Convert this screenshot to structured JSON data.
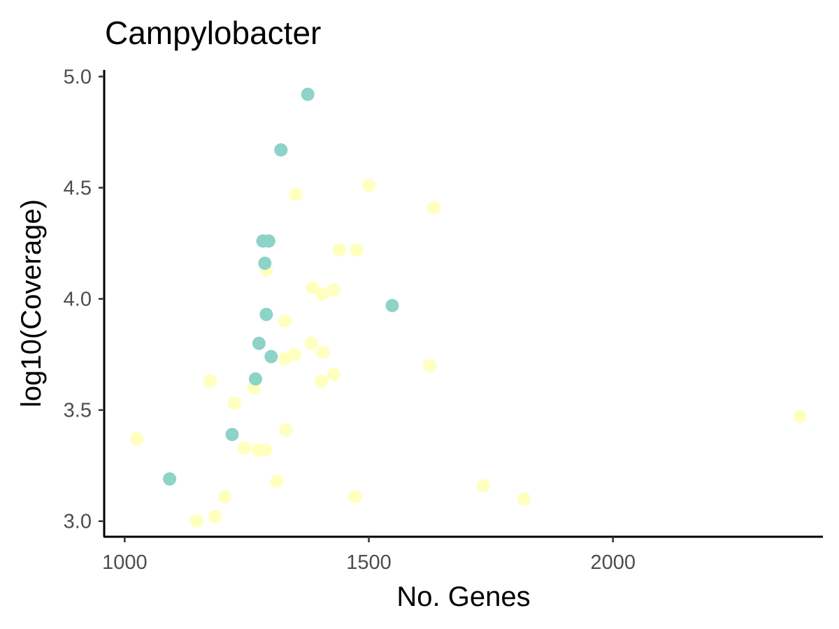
{
  "chart_data": {
    "type": "scatter",
    "title": "Campylobacter",
    "xlabel": "No. Genes",
    "ylabel": "log10(Coverage)",
    "xlim": [
      958,
      2430
    ],
    "ylim": [
      2.93,
      5.03
    ],
    "x_ticks": [
      1000,
      1500,
      2000
    ],
    "y_ticks": [
      3.0,
      3.5,
      4.0,
      4.5,
      5.0
    ],
    "x_tick_labels": [
      "1000",
      "1500",
      "2000"
    ],
    "y_tick_labels": [
      "3.0",
      "3.5",
      "4.0",
      "4.5",
      "5.0"
    ],
    "grid": false,
    "legend": "none",
    "series": [
      {
        "color": "#FFFFBF",
        "points": [
          [
            1025,
            3.37
          ],
          [
            1147,
            3.0
          ],
          [
            1175,
            3.63
          ],
          [
            1185,
            3.02
          ],
          [
            1205,
            3.11
          ],
          [
            1225,
            3.53
          ],
          [
            1245,
            3.33
          ],
          [
            1265,
            3.6
          ],
          [
            1273,
            3.32
          ],
          [
            1288,
            3.32
          ],
          [
            1290,
            4.13
          ],
          [
            1312,
            3.18
          ],
          [
            1328,
            3.9
          ],
          [
            1328,
            3.73
          ],
          [
            1330,
            3.41
          ],
          [
            1348,
            3.75
          ],
          [
            1350,
            4.47
          ],
          [
            1382,
            3.8
          ],
          [
            1385,
            4.05
          ],
          [
            1403,
            3.63
          ],
          [
            1404,
            4.02
          ],
          [
            1406,
            3.76
          ],
          [
            1428,
            4.04
          ],
          [
            1428,
            3.66
          ],
          [
            1440,
            4.22
          ],
          [
            1472,
            3.11
          ],
          [
            1475,
            4.22
          ],
          [
            1500,
            4.51
          ],
          [
            1625,
            3.7
          ],
          [
            1633,
            4.41
          ],
          [
            1735,
            3.16
          ],
          [
            1818,
            3.1
          ],
          [
            2383,
            3.47
          ]
        ]
      },
      {
        "color": "#8DD3C7",
        "points": [
          [
            1092,
            3.19
          ],
          [
            1220,
            3.39
          ],
          [
            1268,
            3.64
          ],
          [
            1275,
            3.8
          ],
          [
            1283,
            4.26
          ],
          [
            1287,
            4.16
          ],
          [
            1290,
            3.93
          ],
          [
            1295,
            4.26
          ],
          [
            1300,
            3.74
          ],
          [
            1320,
            4.67
          ],
          [
            1375,
            4.92
          ],
          [
            1548,
            3.97
          ]
        ]
      }
    ]
  }
}
